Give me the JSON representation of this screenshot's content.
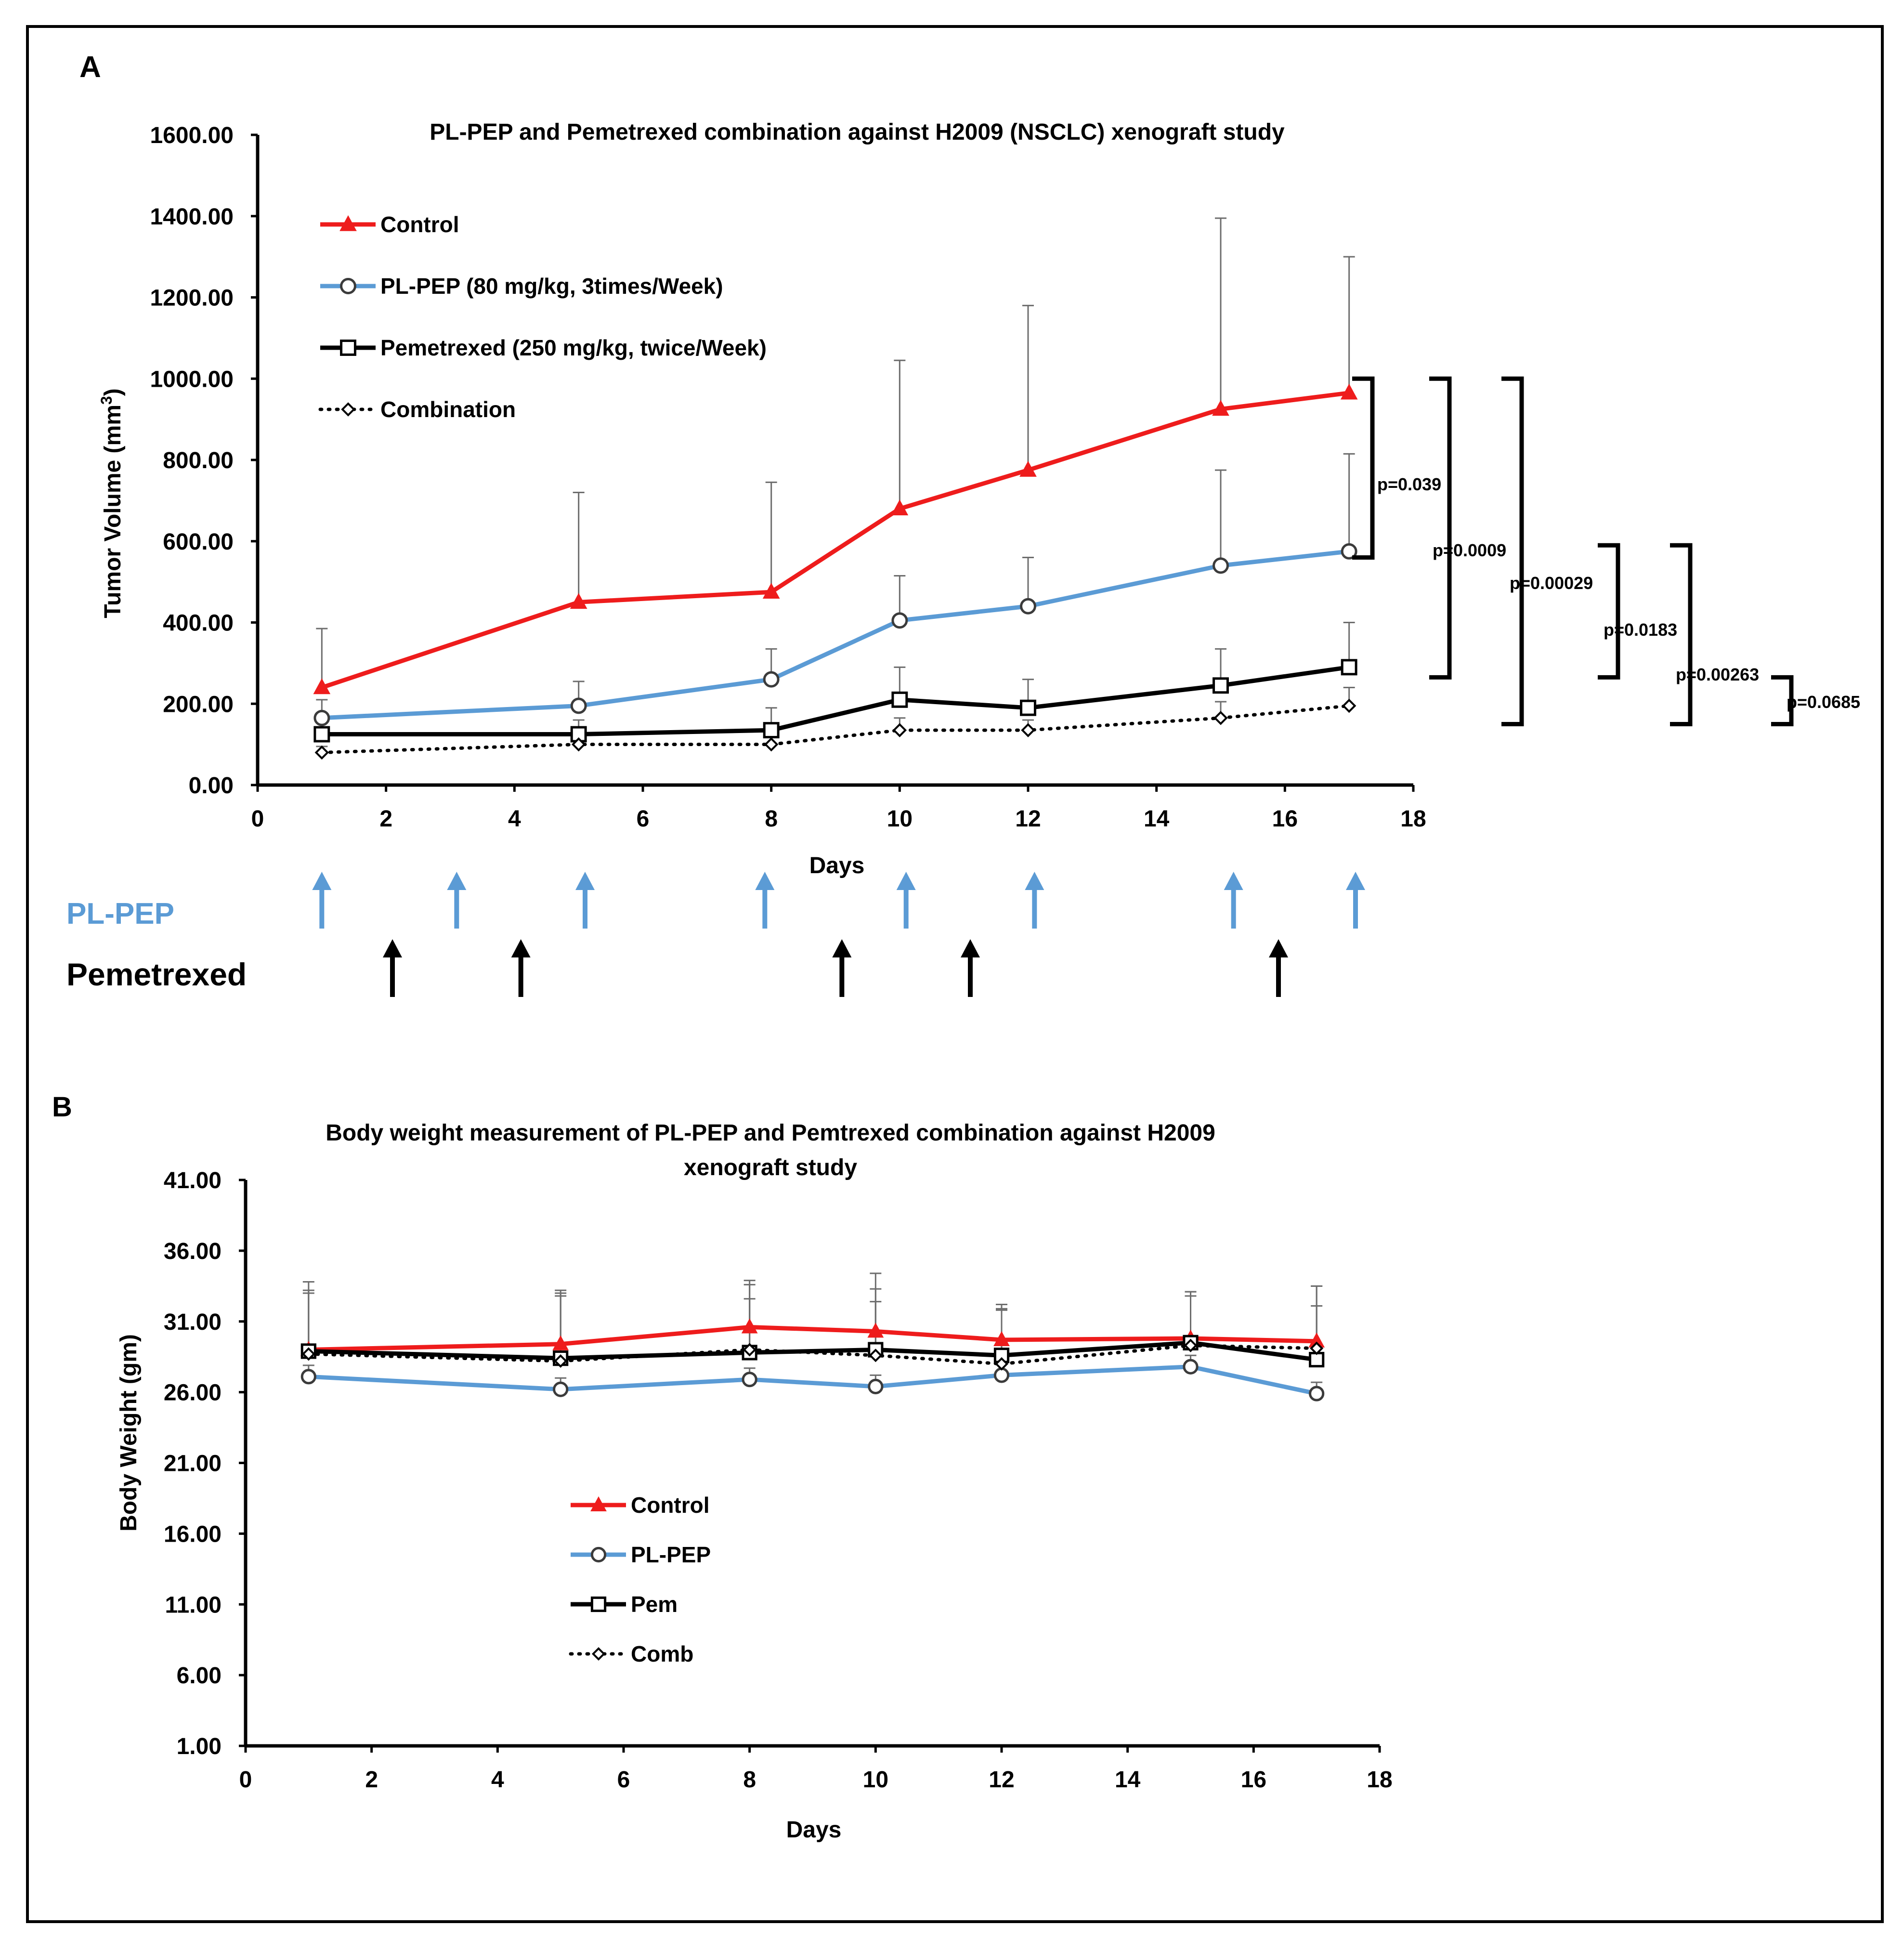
{
  "panels": {
    "a": {
      "letter": "A",
      "schedule_labels": {
        "pl_pep": "PL-PEP",
        "pemetrexed": "Pemetrexed"
      }
    },
    "b": {
      "letter": "B"
    }
  },
  "colors": {
    "control": "#ee1c1c",
    "pl_pep": "#5b9bd5",
    "pemetrexed": "#000000",
    "combination": "#000000",
    "schedule_blue": "#5b9bd5"
  },
  "chart_data": [
    {
      "id": "a",
      "type": "line",
      "title": "PL-PEP and Pemetrexed combination against H2009 (NSCLC) xenograft study",
      "xlabel": "Days",
      "ylabel": "Tumor Volume (mm",
      "ylabel_sup": "3",
      "ylabel_close": ")",
      "xlim": [
        0,
        18
      ],
      "ylim": [
        0,
        1600
      ],
      "xticks": [
        "0",
        "2",
        "4",
        "6",
        "8",
        "10",
        "12",
        "14",
        "16",
        "18"
      ],
      "yticks": [
        "0.00",
        "200.00",
        "400.00",
        "600.00",
        "800.00",
        "1000.00",
        "1200.00",
        "1400.00",
        "1600.00"
      ],
      "legend_position": "top-left",
      "x": [
        1,
        5,
        8,
        10,
        12,
        15,
        17
      ],
      "series": [
        {
          "name": "Control",
          "key": "control",
          "marker": "triangle",
          "style": "solid",
          "values": [
            240,
            450,
            475,
            680,
            775,
            925,
            965
          ],
          "error": [
            145,
            270,
            270,
            365,
            405,
            470,
            335
          ]
        },
        {
          "name": "PL-PEP (80 mg/kg, 3times/Week)",
          "key": "pl_pep",
          "marker": "circle",
          "style": "solid",
          "values": [
            165,
            195,
            260,
            405,
            440,
            540,
            575
          ],
          "error": [
            45,
            60,
            75,
            110,
            120,
            235,
            240
          ]
        },
        {
          "name": "Pemetrexed (250 mg/kg, twice/Week)",
          "key": "pemetrexed",
          "marker": "square",
          "style": "solid",
          "values": [
            125,
            125,
            135,
            210,
            190,
            245,
            290
          ],
          "error": [
            40,
            35,
            55,
            80,
            70,
            90,
            110
          ]
        },
        {
          "name": "Combination",
          "key": "combination",
          "marker": "diamond",
          "style": "dotted",
          "values": [
            80,
            100,
            100,
            135,
            135,
            165,
            195
          ],
          "error": [
            15,
            20,
            20,
            30,
            25,
            40,
            45
          ]
        }
      ],
      "significance": [
        {
          "label": "p=0.039",
          "top": 1000,
          "bottom": 560
        },
        {
          "label": "p=0.0009",
          "top": 1000,
          "bottom": 265
        },
        {
          "label": "p=0.00029",
          "top": 1000,
          "bottom": 150
        },
        {
          "label": "p=0.0183",
          "top": 590,
          "bottom": 265
        },
        {
          "label": "p=0.00263",
          "top": 590,
          "bottom": 150
        },
        {
          "label": "p=0.0685",
          "top": 265,
          "bottom": 150
        }
      ],
      "dosing_days": {
        "pl_pep": [
          1,
          3.1,
          5.1,
          7.9,
          10.1,
          12.1,
          15.2,
          17.1
        ],
        "pemetrexed": [
          2.1,
          4.1,
          9.1,
          11.1,
          15.9
        ]
      }
    },
    {
      "id": "b",
      "type": "line",
      "title": "Body weight measurement of PL-PEP and Pemtrexed combination against H2009",
      "title_line2": "xenograft study",
      "xlabel": "Days",
      "ylabel": "Body Weight (gm)",
      "xlim": [
        0,
        18
      ],
      "ylim": [
        1,
        41
      ],
      "xticks": [
        "0",
        "2",
        "4",
        "6",
        "8",
        "10",
        "12",
        "14",
        "16",
        "18"
      ],
      "yticks": [
        "1.00",
        "6.00",
        "11.00",
        "16.00",
        "21.00",
        "26.00",
        "31.00",
        "36.00",
        "41.00"
      ],
      "legend_position": "center",
      "x": [
        1,
        5,
        8,
        10,
        12,
        15,
        17
      ],
      "series": [
        {
          "name": "Control",
          "key": "control",
          "marker": "triangle",
          "style": "solid",
          "values": [
            29.0,
            29.4,
            30.6,
            30.3,
            29.7,
            29.8,
            29.6
          ],
          "error": [
            4.8,
            3.8,
            3.3,
            4.1,
            2.5,
            3.3,
            3.9
          ]
        },
        {
          "name": "PL-PEP",
          "key": "pl_pep",
          "marker": "circle",
          "style": "solid",
          "values": [
            27.1,
            26.2,
            26.9,
            26.4,
            27.2,
            27.8,
            25.9
          ],
          "error": [
            0.8,
            0.8,
            0.8,
            0.8,
            0.8,
            0.8,
            0.8
          ]
        },
        {
          "name": "Pem",
          "key": "pemetrexed",
          "marker": "square",
          "style": "solid",
          "values": [
            28.9,
            28.4,
            28.8,
            29.0,
            28.6,
            29.5,
            28.3
          ],
          "error": [
            4.3,
            4.6,
            3.8,
            4.3,
            3.3,
            3.3,
            3.8
          ]
        },
        {
          "name": "Comb",
          "key": "combination",
          "marker": "diamond",
          "style": "dotted",
          "values": [
            28.7,
            28.2,
            29.0,
            28.6,
            28.0,
            29.3,
            29.1
          ],
          "error": [
            4.3,
            4.6,
            4.6,
            3.8,
            3.8,
            3.8,
            4.4
          ]
        }
      ]
    }
  ]
}
